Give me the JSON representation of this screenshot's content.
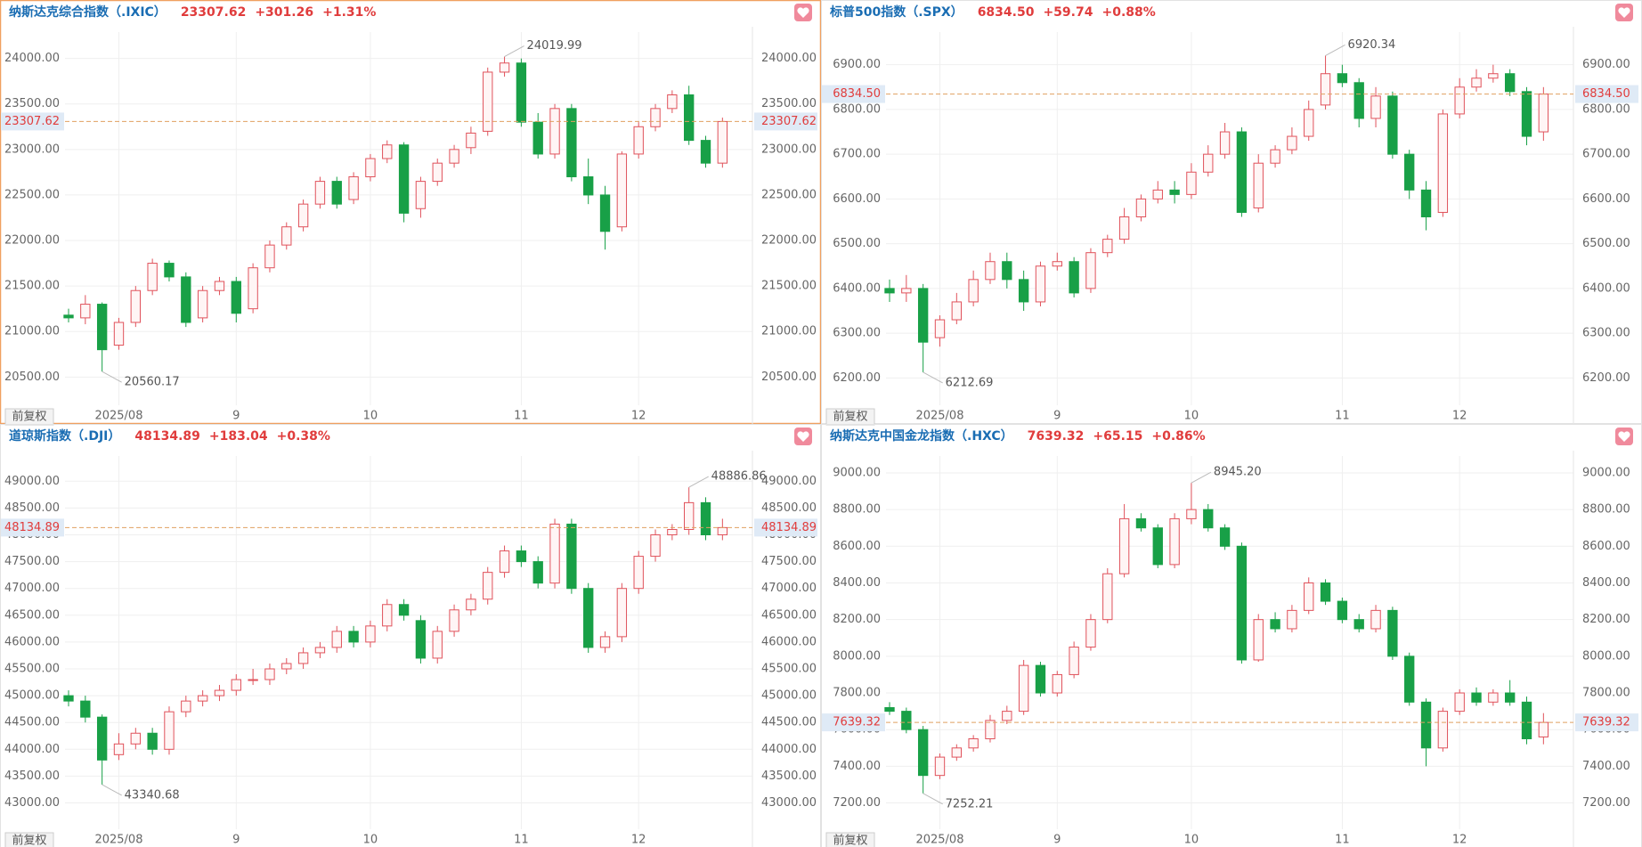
{
  "chart_data": [
    {
      "type": "candlestick",
      "title": "纳斯达克综合指数（.IXIC）",
      "last_price": "23307.62",
      "change": "+301.26",
      "change_pct": "+1.31%",
      "adjust_label": "前复权",
      "categories": [
        null,
        null,
        null,
        "2025/08",
        null,
        null,
        null,
        null,
        null,
        null,
        "9",
        null,
        null,
        null,
        null,
        null,
        null,
        null,
        "10",
        null,
        null,
        null,
        null,
        null,
        null,
        null,
        null,
        "11",
        null,
        null,
        null,
        null,
        null,
        null,
        "12",
        null,
        null,
        null,
        null,
        null
      ],
      "series": {
        "open": [
          21180,
          21150,
          21300,
          20850,
          21100,
          21450,
          21750,
          21600,
          21150,
          21450,
          21550,
          21250,
          21700,
          21950,
          22150,
          22400,
          22650,
          22450,
          22700,
          22900,
          23050,
          22350,
          22650,
          22850,
          23020,
          23200,
          23850,
          23950,
          23300,
          22950,
          23450,
          22700,
          22500,
          22150,
          22950,
          23250,
          23450,
          23600,
          23100,
          22850
        ],
        "high": [
          21250,
          21400,
          21320,
          21150,
          21500,
          21800,
          21780,
          21650,
          21500,
          21600,
          21600,
          21750,
          22000,
          22200,
          22450,
          22700,
          22700,
          22750,
          22950,
          23100,
          23080,
          22700,
          22900,
          23050,
          23250,
          23900,
          24019.99,
          24000,
          23400,
          23500,
          23500,
          22900,
          22600,
          22980,
          23300,
          23500,
          23650,
          23700,
          23150,
          23350
        ],
        "low": [
          21100,
          21080,
          20560.17,
          20800,
          21050,
          21400,
          21550,
          21050,
          21100,
          21400,
          21100,
          21200,
          21650,
          21900,
          22100,
          22350,
          22350,
          22400,
          22650,
          22850,
          22200,
          22250,
          22600,
          22800,
          22950,
          23150,
          23800,
          23250,
          22900,
          22900,
          22650,
          22400,
          21900,
          22100,
          22900,
          23200,
          23400,
          23050,
          22800,
          22800
        ],
        "close": [
          21150,
          21300,
          20800,
          21100,
          21450,
          21750,
          21600,
          21100,
          21450,
          21550,
          21200,
          21700,
          21950,
          22150,
          22400,
          22650,
          22400,
          22700,
          22900,
          23050,
          22300,
          22650,
          22850,
          23000,
          23180,
          23850,
          23950,
          23300,
          22950,
          23450,
          22700,
          22500,
          22100,
          22950,
          23250,
          23450,
          23600,
          23100,
          22850,
          23307.62
        ]
      },
      "up_color": "#e0525b",
      "down_color": "#18a047",
      "high_label": "24019.99",
      "low_label": "20560.17",
      "ylim": [
        20190,
        24290
      ],
      "yticks": [
        {
          "value": 20500,
          "label": "20500.00"
        },
        {
          "value": 21000,
          "label": "21000.00"
        },
        {
          "value": 21500,
          "label": "21500.00"
        },
        {
          "value": 22000,
          "label": "22000.00"
        },
        {
          "value": 22500,
          "label": "22500.00"
        },
        {
          "value": 23000,
          "label": "23000.00"
        },
        {
          "value": 23500,
          "label": "23500.00"
        },
        {
          "value": 24000,
          "label": "24000.00"
        }
      ],
      "grid": true
    },
    {
      "type": "candlestick",
      "title": "标普500指数（.SPX）",
      "last_price": "6834.50",
      "change": "+59.74",
      "change_pct": "+0.88%",
      "adjust_label": "前复权",
      "categories": [
        null,
        null,
        null,
        "2025/08",
        null,
        null,
        null,
        null,
        null,
        null,
        "9",
        null,
        null,
        null,
        null,
        null,
        null,
        null,
        "10",
        null,
        null,
        null,
        null,
        null,
        null,
        null,
        null,
        "11",
        null,
        null,
        null,
        null,
        null,
        null,
        "12",
        null,
        null,
        null,
        null,
        null
      ],
      "series": {
        "open": [
          6400,
          6390,
          6400,
          6290,
          6330,
          6370,
          6420,
          6460,
          6420,
          6370,
          6450,
          6460,
          6400,
          6480,
          6510,
          6560,
          6600,
          6620,
          6610,
          6660,
          6700,
          6750,
          6580,
          6680,
          6710,
          6740,
          6810,
          6880,
          6860,
          6780,
          6830,
          6700,
          6620,
          6570,
          6790,
          6850,
          6870,
          6880,
          6840,
          6750
        ],
        "high": [
          6420,
          6430,
          6410,
          6340,
          6390,
          6440,
          6480,
          6480,
          6440,
          6460,
          6480,
          6470,
          6490,
          6520,
          6580,
          6610,
          6640,
          6640,
          6680,
          6720,
          6770,
          6760,
          6700,
          6720,
          6760,
          6820,
          6920.34,
          6900,
          6870,
          6850,
          6840,
          6710,
          6640,
          6800,
          6870,
          6890,
          6900,
          6890,
          6850,
          6850
        ],
        "low": [
          6370,
          6370,
          6212.69,
          6270,
          6320,
          6360,
          6410,
          6400,
          6350,
          6360,
          6440,
          6380,
          6390,
          6470,
          6500,
          6550,
          6590,
          6590,
          6600,
          6650,
          6690,
          6560,
          6570,
          6670,
          6700,
          6730,
          6800,
          6850,
          6760,
          6760,
          6690,
          6600,
          6530,
          6560,
          6780,
          6840,
          6860,
          6830,
          6720,
          6730
        ],
        "close": [
          6390,
          6400,
          6280,
          6330,
          6370,
          6420,
          6460,
          6420,
          6370,
          6450,
          6460,
          6390,
          6480,
          6510,
          6560,
          6600,
          6620,
          6610,
          6660,
          6700,
          6750,
          6570,
          6680,
          6710,
          6740,
          6800,
          6880,
          6860,
          6780,
          6830,
          6700,
          6620,
          6560,
          6790,
          6850,
          6870,
          6880,
          6840,
          6740,
          6834.5
        ]
      },
      "up_color": "#e0525b",
      "down_color": "#18a047",
      "high_label": "6920.34",
      "low_label": "6212.69",
      "ylim": [
        6139,
        6973
      ],
      "yticks": [
        {
          "value": 6200,
          "label": "6200.00"
        },
        {
          "value": 6300,
          "label": "6300.00"
        },
        {
          "value": 6400,
          "label": "6400.00"
        },
        {
          "value": 6500,
          "label": "6500.00"
        },
        {
          "value": 6600,
          "label": "6600.00"
        },
        {
          "value": 6700,
          "label": "6700.00"
        },
        {
          "value": 6800,
          "label": "6800.00"
        },
        {
          "value": 6900,
          "label": "6900.00"
        }
      ],
      "grid": true
    },
    {
      "type": "candlestick",
      "title": "道琼斯指数（.DJI）",
      "last_price": "48134.89",
      "change": "+183.04",
      "change_pct": "+0.38%",
      "adjust_label": "前复权",
      "categories": [
        null,
        null,
        null,
        "2025/08",
        null,
        null,
        null,
        null,
        null,
        null,
        "9",
        null,
        null,
        null,
        null,
        null,
        null,
        null,
        "10",
        null,
        null,
        null,
        null,
        null,
        null,
        null,
        null,
        "11",
        null,
        null,
        null,
        null,
        null,
        null,
        "12",
        null,
        null,
        null,
        null,
        null
      ],
      "series": {
        "open": [
          45000,
          44900,
          44600,
          43900,
          44100,
          44300,
          44000,
          44700,
          44900,
          45000,
          45100,
          45300,
          45300,
          45500,
          45600,
          45800,
          45900,
          46200,
          46000,
          46300,
          46700,
          46400,
          45700,
          46200,
          46600,
          46800,
          47300,
          47700,
          47500,
          47100,
          48200,
          47000,
          45900,
          46100,
          47000,
          47600,
          48000,
          48100,
          48600,
          48000
        ],
        "high": [
          45100,
          45000,
          44650,
          44300,
          44400,
          44400,
          44800,
          45000,
          45100,
          45200,
          45400,
          45500,
          45600,
          45700,
          45900,
          46000,
          46300,
          46300,
          46400,
          46800,
          46800,
          46500,
          46300,
          46700,
          46900,
          47400,
          47800,
          47800,
          47600,
          48300,
          48300,
          47100,
          46200,
          47100,
          47700,
          48100,
          48200,
          48886.86,
          48700,
          48300
        ],
        "low": [
          44800,
          44500,
          43340.68,
          43800,
          44000,
          43900,
          43900,
          44600,
          44800,
          44900,
          45000,
          45200,
          45200,
          45400,
          45500,
          45700,
          45800,
          45900,
          45900,
          46200,
          46400,
          45600,
          45600,
          46100,
          46500,
          46700,
          47200,
          47400,
          47000,
          47000,
          46900,
          45800,
          45800,
          46000,
          46900,
          47500,
          47900,
          48000,
          47900,
          47900
        ],
        "close": [
          44900,
          44600,
          43800,
          44100,
          44300,
          44000,
          44700,
          44900,
          45000,
          45100,
          45300,
          45300,
          45500,
          45600,
          45800,
          45900,
          46200,
          46000,
          46300,
          46700,
          46500,
          45700,
          46200,
          46600,
          46800,
          47300,
          47700,
          47500,
          47100,
          48200,
          47000,
          45900,
          46100,
          47000,
          47600,
          48000,
          48100,
          48600,
          48000,
          48134.89
        ]
      },
      "up_color": "#e0525b",
      "down_color": "#18a047",
      "high_label": "48886.86",
      "low_label": "43340.68",
      "ylim": [
        42510,
        49470
      ],
      "yticks": [
        {
          "value": 43000,
          "label": "43000.00"
        },
        {
          "value": 43500,
          "label": "43500.00"
        },
        {
          "value": 44000,
          "label": "44000.00"
        },
        {
          "value": 44500,
          "label": "44500.00"
        },
        {
          "value": 45000,
          "label": "45000.00"
        },
        {
          "value": 45500,
          "label": "45500.00"
        },
        {
          "value": 46000,
          "label": "46000.00"
        },
        {
          "value": 46500,
          "label": "46500.00"
        },
        {
          "value": 47000,
          "label": "47000.00"
        },
        {
          "value": 47500,
          "label": "47500.00"
        },
        {
          "value": 48000,
          "label": "48000.00"
        },
        {
          "value": 48500,
          "label": "48500.00"
        },
        {
          "value": 49000,
          "label": "49000.00"
        }
      ],
      "grid": true
    },
    {
      "type": "candlestick",
      "title": "纳斯达克中国金龙指数（.HXC）",
      "last_price": "7639.32",
      "change": "+65.15",
      "change_pct": "+0.86%",
      "adjust_label": "前复权",
      "categories": [
        null,
        null,
        null,
        "2025/08",
        null,
        null,
        null,
        null,
        null,
        null,
        "9",
        null,
        null,
        null,
        null,
        null,
        null,
        null,
        "10",
        null,
        null,
        null,
        null,
        null,
        null,
        null,
        null,
        "11",
        null,
        null,
        null,
        null,
        null,
        null,
        "12",
        null,
        null,
        null,
        null,
        null
      ],
      "series": {
        "open": [
          7720,
          7700,
          7600,
          7350,
          7450,
          7500,
          7550,
          7650,
          7700,
          7950,
          7800,
          7900,
          8050,
          8200,
          8450,
          8750,
          8700,
          8500,
          8750,
          8800,
          8700,
          8600,
          7980,
          8200,
          8150,
          8250,
          8400,
          8300,
          8200,
          8150,
          8250,
          8000,
          7750,
          7500,
          7700,
          7800,
          7750,
          7800,
          7750,
          7560
        ],
        "high": [
          7750,
          7720,
          7620,
          7470,
          7520,
          7570,
          7680,
          7730,
          7980,
          7970,
          7920,
          8080,
          8230,
          8480,
          8830,
          8780,
          8720,
          8780,
          8945.2,
          8830,
          8720,
          8620,
          8230,
          8240,
          8280,
          8430,
          8420,
          8320,
          8230,
          8280,
          8270,
          8020,
          7770,
          7720,
          7820,
          7830,
          7820,
          7870,
          7780,
          7690
        ],
        "low": [
          7680,
          7580,
          7252.21,
          7330,
          7430,
          7480,
          7530,
          7630,
          7680,
          7780,
          7780,
          7880,
          8030,
          8180,
          8430,
          8680,
          8480,
          8480,
          8720,
          8680,
          8580,
          7960,
          7970,
          8130,
          8130,
          8230,
          8280,
          8180,
          8130,
          8130,
          7980,
          7730,
          7400,
          7480,
          7680,
          7730,
          7730,
          7730,
          7520,
          7520
        ],
        "close": [
          7700,
          7600,
          7350,
          7450,
          7500,
          7550,
          7650,
          7700,
          7950,
          7800,
          7900,
          8050,
          8200,
          8450,
          8750,
          8700,
          8500,
          8750,
          8800,
          8700,
          8600,
          7980,
          8200,
          8150,
          8250,
          8400,
          8300,
          8200,
          8150,
          8250,
          8000,
          7750,
          7500,
          7700,
          7800,
          7750,
          7800,
          7750,
          7550,
          7639.32
        ]
      },
      "up_color": "#e0525b",
      "down_color": "#18a047",
      "high_label": "8945.20",
      "low_label": "7252.21",
      "ylim": [
        7057,
        9092
      ],
      "yticks": [
        {
          "value": 7200,
          "label": "7200.00"
        },
        {
          "value": 7400,
          "label": "7400.00"
        },
        {
          "value": 7600,
          "label": "7600.00"
        },
        {
          "value": 7800,
          "label": "7800.00"
        },
        {
          "value": 8000,
          "label": "8000.00"
        },
        {
          "value": 8200,
          "label": "8200.00"
        },
        {
          "value": 8400,
          "label": "8400.00"
        },
        {
          "value": 8600,
          "label": "8600.00"
        },
        {
          "value": 8800,
          "label": "8800.00"
        },
        {
          "value": 9000,
          "label": "9000.00"
        }
      ],
      "grid": true
    }
  ]
}
